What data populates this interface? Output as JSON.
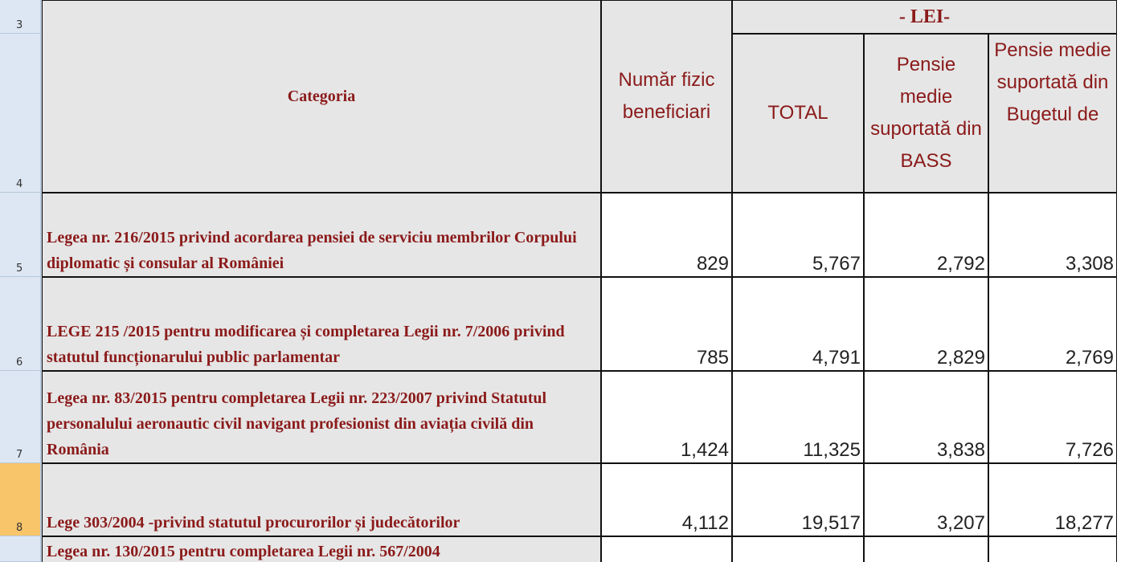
{
  "row_headers": [
    "3",
    "4",
    "5",
    "6",
    "7",
    "8"
  ],
  "header": {
    "category": "Categoria",
    "count": "Număr fizic beneficiari",
    "unit": "- LEI-",
    "total": "TOTAL",
    "bass": "Pensie medie suportată din BASS",
    "budget": "Pensie medie suportată din Bugetul de"
  },
  "rows": [
    {
      "category": "Legea nr. 216/2015 privind acordarea pensiei de serviciu membrilor Corpului diplomatic și consular al României",
      "values": [
        "829",
        "5,767",
        "2,792",
        "3,308"
      ]
    },
    {
      "category": "LEGE 215 /2015  pentru modificarea și completarea Legii nr. 7/2006 privind statutul funcționarului public parlamentar",
      "values": [
        "785",
        "4,791",
        "2,829",
        "2,769"
      ]
    },
    {
      "category": "Legea nr. 83/2015 pentru completarea Legii nr. 223/2007 privind Statutul personalului aeronautic civil navigant profesionist din aviația civilă din România",
      "values": [
        "1,424",
        "11,325",
        "3,838",
        "7,726"
      ]
    },
    {
      "category": "Lege 303/2004 -privind statutul procurorilor și judecătorilor",
      "values": [
        "4,112",
        "19,517",
        "3,207",
        "18,277"
      ]
    }
  ],
  "partial_row": "Legea nr. 130/2015 pentru completarea Legii nr. 567/2004"
}
